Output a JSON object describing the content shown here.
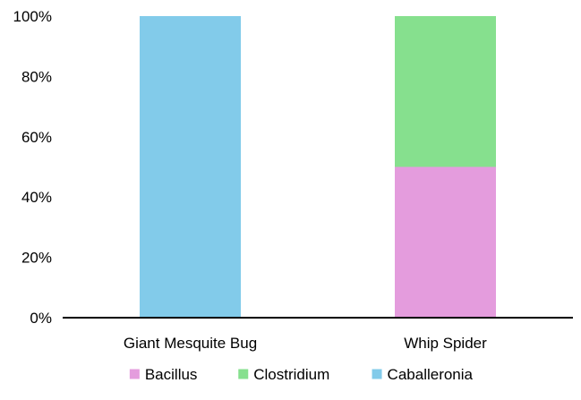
{
  "chart_data": {
    "type": "bar",
    "stacked": true,
    "percent": true,
    "title": "",
    "xlabel": "",
    "ylabel": "",
    "ylim": [
      0,
      100
    ],
    "yticks": [
      "0%",
      "20%",
      "40%",
      "60%",
      "80%",
      "100%"
    ],
    "categories": [
      "Giant Mesquite Bug",
      "Whip Spider"
    ],
    "series": [
      {
        "name": "Bacillus",
        "color": "#e49cdd",
        "values": [
          0,
          50
        ]
      },
      {
        "name": "Clostridium",
        "color": "#86e08e",
        "values": [
          0,
          50
        ]
      },
      {
        "name": "Caballeronia",
        "color": "#82cbea",
        "values": [
          100,
          0
        ]
      }
    ],
    "legend_position": "bottom",
    "grid": false
  }
}
